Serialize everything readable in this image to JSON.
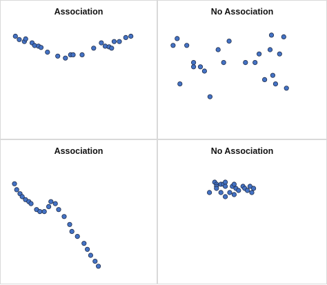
{
  "chart_data": [
    {
      "type": "scatter",
      "title": "Association",
      "xlim": [
        0,
        100
      ],
      "ylim": [
        0,
        100
      ],
      "grid": false,
      "marker_color": "#4472c4",
      "marker_edge": "#1f2d4a",
      "series": [
        {
          "x": [
            5,
            8,
            12,
            13,
            18,
            20,
            23,
            25,
            30,
            38,
            44,
            48,
            50,
            57,
            66,
            72,
            75,
            78,
            80,
            82,
            86,
            91,
            95
          ],
          "y": [
            88,
            83,
            80,
            84,
            78,
            74,
            73,
            71,
            64,
            58,
            55,
            60,
            60,
            60,
            70,
            78,
            73,
            72,
            70,
            80,
            80,
            86,
            88
          ]
        }
      ]
    },
    {
      "type": "scatter",
      "title": "No Association",
      "xlim": [
        0,
        100
      ],
      "ylim": [
        0,
        100
      ],
      "grid": false,
      "marker_color": "#4472c4",
      "marker_edge": "#1f2d4a",
      "series": [
        {
          "x": [
            5,
            8,
            10,
            15,
            20,
            20,
            25,
            28,
            32,
            38,
            42,
            46,
            58,
            65,
            68,
            72,
            76,
            77,
            78,
            80,
            83,
            86,
            88
          ],
          "y": [
            80,
            88,
            35,
            80,
            55,
            60,
            55,
            50,
            20,
            75,
            60,
            85,
            60,
            60,
            70,
            40,
            75,
            92,
            45,
            35,
            70,
            90,
            30
          ]
        }
      ]
    },
    {
      "type": "scatter",
      "title": "Association",
      "xlim": [
        0,
        100
      ],
      "ylim": [
        0,
        100
      ],
      "grid": false,
      "marker_color": "#4472c4",
      "marker_edge": "#1f2d4a",
      "series": [
        {
          "x": [
            5,
            7,
            10,
            12,
            15,
            18,
            20,
            25,
            28,
            32,
            36,
            38,
            42,
            45,
            50,
            55,
            57,
            62,
            68,
            71,
            74,
            78,
            81
          ],
          "y": [
            88,
            82,
            78,
            75,
            72,
            70,
            68,
            62,
            60,
            60,
            65,
            70,
            68,
            62,
            55,
            47,
            40,
            35,
            28,
            22,
            16,
            10,
            5
          ]
        }
      ]
    },
    {
      "type": "scatter",
      "title": "No Association",
      "xlim": [
        0,
        100
      ],
      "ylim": [
        0,
        100
      ],
      "grid": false,
      "marker_color": "#4472c4",
      "marker_edge": "#1f2d4a",
      "series": [
        {
          "x": [
            2,
            8,
            10,
            10,
            10,
            15,
            15,
            18,
            20,
            20,
            20,
            25,
            28,
            30,
            30,
            32,
            35,
            40,
            42,
            45,
            48,
            50,
            52
          ],
          "y": [
            60,
            85,
            80,
            75,
            70,
            80,
            60,
            80,
            85,
            75,
            50,
            60,
            75,
            80,
            55,
            70,
            65,
            75,
            70,
            65,
            75,
            60,
            70
          ]
        }
      ]
    }
  ]
}
